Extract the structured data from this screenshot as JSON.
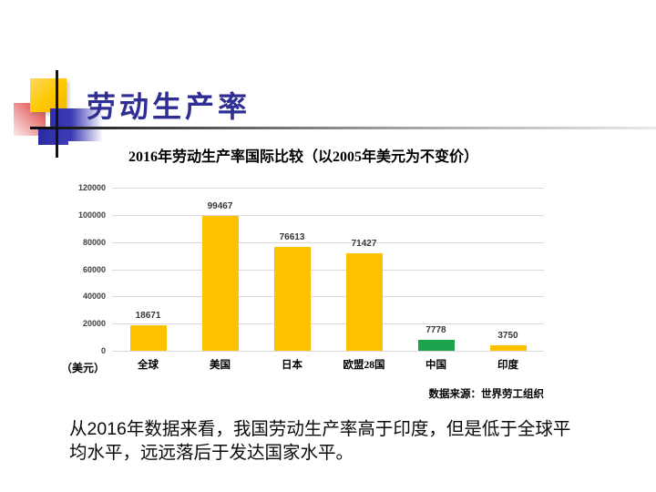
{
  "slide": {
    "title": "劳动生产率"
  },
  "chart": {
    "title": "2016年劳动生产率国际比较（以2005年美元为不变价）",
    "unit_label": "（美元）",
    "source": "数据来源：世界劳工组织"
  },
  "chart_data": {
    "type": "bar",
    "title": "2016年劳动生产率国际比较（以2005年美元为不变价）",
    "categories": [
      "全球",
      "美国",
      "日本",
      "欧盟28国",
      "中国",
      "印度"
    ],
    "values": [
      18671,
      99467,
      76613,
      71427,
      7778,
      3750
    ],
    "bar_colors": [
      "#FFC000",
      "#FFC000",
      "#FFC000",
      "#FFC000",
      "#1CA34B",
      "#FFC000"
    ],
    "value_labels": [
      "18671",
      "99467",
      "76613",
      "71427",
      "7778",
      "3750"
    ],
    "xlabel": "",
    "ylabel": "（美元）",
    "ylim": [
      0,
      120000
    ],
    "yticks": [
      0,
      20000,
      40000,
      60000,
      80000,
      100000,
      120000
    ],
    "grid": true,
    "legend": false,
    "source_note": "数据来源：世界劳工组织"
  },
  "footer": {
    "lines": [
      "从2016年数据来看，我国劳动生产率高于印度，但是低于全球平",
      "均水平，远远落后于发达国家水平。"
    ]
  },
  "colors": {
    "title": "#2E2E94",
    "bar_default": "#FFC000",
    "bar_highlight": "#1CA34B",
    "gridline": "#D9D9D9",
    "label": "#383838"
  }
}
